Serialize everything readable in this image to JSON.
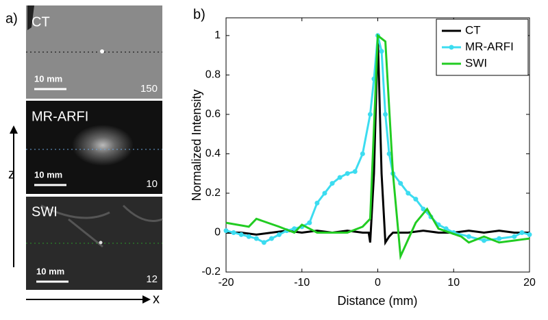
{
  "panel_a": {
    "label": "a)",
    "images": [
      {
        "title": "CT",
        "scale_bar": "10 mm",
        "number": "150"
      },
      {
        "title": "MR-ARFI",
        "scale_bar": "10 mm",
        "number": "10"
      },
      {
        "title": "SWI",
        "scale_bar": "10 mm",
        "number": "12"
      }
    ],
    "z_axis": "z",
    "x_axis": "x"
  },
  "chart_data": {
    "type": "line",
    "panel_label": "b)",
    "xlabel": "Distance (mm)",
    "ylabel": "Normalized Intensity",
    "xlim": [
      -20,
      20
    ],
    "xticks": [
      -20,
      -10,
      0,
      10,
      20
    ],
    "ylim": [
      -0.2,
      1.09
    ],
    "yticks": [
      -0.2,
      0,
      0.2,
      0.4,
      0.6,
      0.8,
      1
    ],
    "legend": "top-right",
    "series": [
      {
        "name": "CT",
        "color": "#000000",
        "marker": "none",
        "x": [
          -20,
          -18,
          -16,
          -14,
          -12,
          -10,
          -8,
          -6,
          -4,
          -2,
          -1.2,
          -1,
          -0.5,
          0,
          0.5,
          1,
          1.5,
          2,
          4,
          6,
          8,
          10,
          12,
          14,
          16,
          18,
          20
        ],
        "values": [
          0,
          0,
          -0.01,
          0,
          0.01,
          0,
          0.01,
          0,
          0.01,
          0,
          0,
          -0.05,
          0.3,
          1,
          0.3,
          -0.05,
          -0.02,
          0,
          0,
          0.01,
          0,
          0,
          0.01,
          0,
          0.01,
          0,
          0
        ]
      },
      {
        "name": "MR-ARFI",
        "color": "#3cdcf0",
        "marker": "circle",
        "x": [
          -20,
          -19,
          -18,
          -17,
          -16,
          -15,
          -14,
          -13,
          -12,
          -11,
          -10,
          -9,
          -8,
          -7,
          -6,
          -5,
          -4,
          -3,
          -2,
          -1,
          -0.5,
          0,
          0.5,
          1,
          1.5,
          2,
          3,
          4,
          5,
          6,
          7,
          8,
          9,
          10,
          12,
          14,
          16,
          18,
          19,
          20
        ],
        "values": [
          0.01,
          0,
          -0.01,
          -0.02,
          -0.03,
          -0.05,
          -0.03,
          -0.01,
          0.01,
          0.02,
          0.03,
          0.05,
          0.15,
          0.2,
          0.25,
          0.28,
          0.3,
          0.31,
          0.4,
          0.6,
          0.78,
          1,
          0.92,
          0.6,
          0.4,
          0.3,
          0.25,
          0.2,
          0.17,
          0.12,
          0.08,
          0.04,
          0.02,
          0,
          -0.02,
          -0.04,
          -0.03,
          -0.02,
          0,
          -0.01
        ]
      },
      {
        "name": "SWI",
        "color": "#22cc22",
        "marker": "none",
        "x": [
          -20,
          -17,
          -16,
          -13,
          -11,
          -10,
          -9,
          -8,
          -6,
          -4,
          -2,
          -1,
          0,
          1,
          2,
          3,
          5,
          6.5,
          8,
          11,
          12,
          14,
          16,
          18,
          20
        ],
        "values": [
          0.05,
          0.03,
          0.07,
          0.03,
          0,
          0.04,
          0.02,
          0,
          0,
          0,
          0.03,
          0.07,
          1,
          0.97,
          0.3,
          -0.12,
          0.05,
          0.12,
          0.02,
          -0.02,
          -0.05,
          -0.02,
          -0.05,
          -0.04,
          -0.03
        ]
      }
    ]
  }
}
